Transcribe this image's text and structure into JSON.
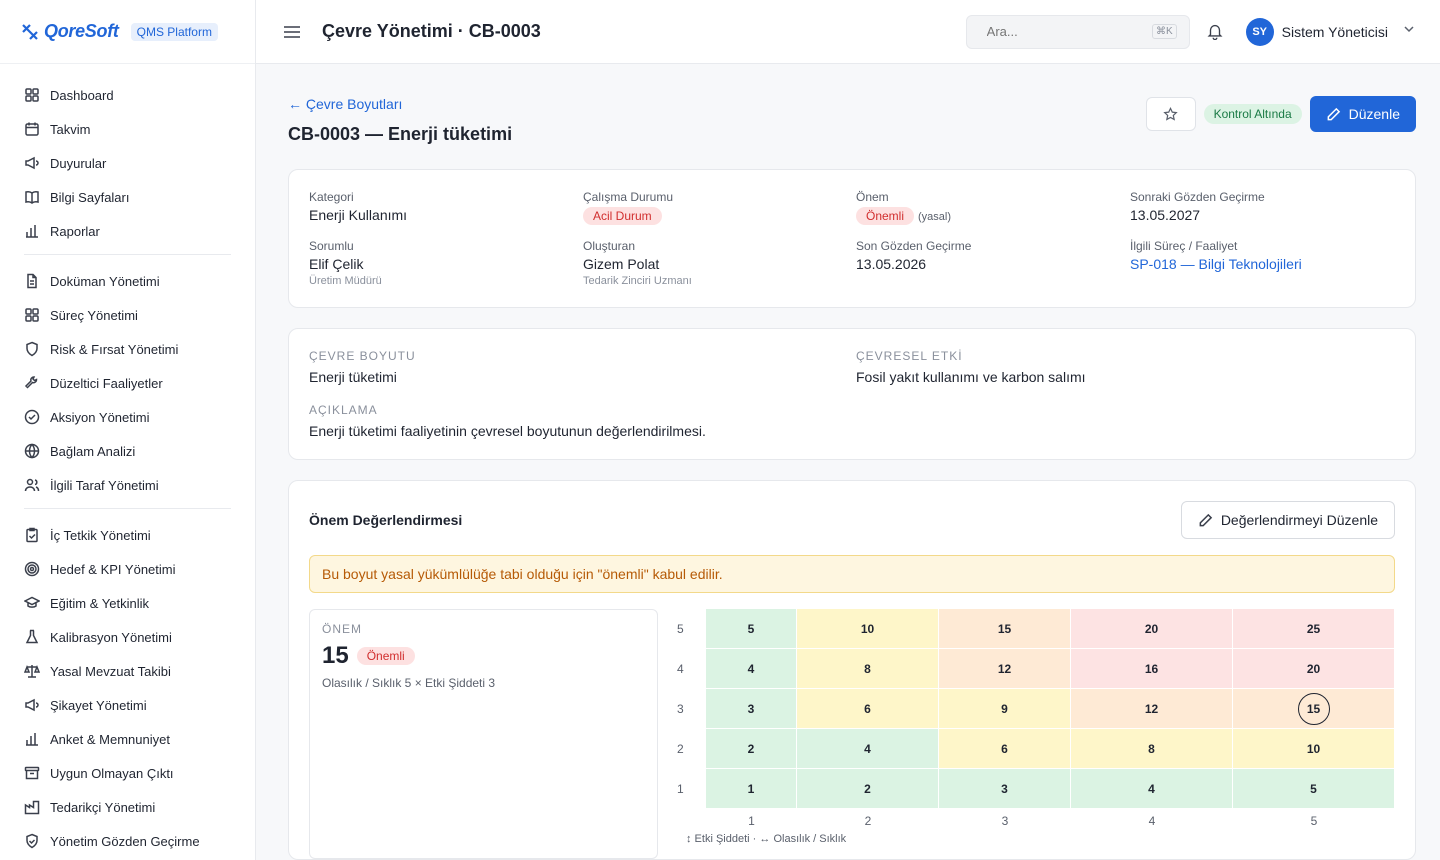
{
  "brand": {
    "logo_text": "QoreSoft",
    "platform": "QMS Platform"
  },
  "sidebar": {
    "groups": [
      [
        {
          "label": "Dashboard",
          "icon": "grid-icon"
        },
        {
          "label": "Takvim",
          "icon": "calendar-icon"
        },
        {
          "label": "Duyurular",
          "icon": "megaphone-icon"
        },
        {
          "label": "Bilgi Sayfaları",
          "icon": "book-icon"
        },
        {
          "label": "Raporlar",
          "icon": "bar-chart-icon"
        }
      ],
      [
        {
          "label": "Doküman Yönetimi",
          "icon": "document-icon"
        },
        {
          "label": "Süreç Yönetimi",
          "icon": "grid-icon"
        },
        {
          "label": "Risk & Fırsat Yönetimi",
          "icon": "shield-icon"
        },
        {
          "label": "Düzeltici Faaliyetler",
          "icon": "wrench-icon"
        },
        {
          "label": "Aksiyon Yönetimi",
          "icon": "check-circle-icon"
        },
        {
          "label": "Bağlam Analizi",
          "icon": "globe-icon"
        },
        {
          "label": "İlgili Taraf Yönetimi",
          "icon": "users-icon"
        }
      ],
      [
        {
          "label": "İç Tetkik Yönetimi",
          "icon": "clipboard-check-icon"
        },
        {
          "label": "Hedef & KPI Yönetimi",
          "icon": "target-icon"
        },
        {
          "label": "Eğitim & Yetkinlik",
          "icon": "graduation-cap-icon"
        },
        {
          "label": "Kalibrasyon Yönetimi",
          "icon": "flask-icon"
        },
        {
          "label": "Yasal Mevzuat Takibi",
          "icon": "scale-icon"
        },
        {
          "label": "Şikayet Yönetimi",
          "icon": "megaphone-icon"
        },
        {
          "label": "Anket & Memnuniyet",
          "icon": "bar-chart-icon"
        },
        {
          "label": "Uygun Olmayan Çıktı",
          "icon": "archive-icon"
        },
        {
          "label": "Tedarikçi Yönetimi",
          "icon": "factory-icon"
        },
        {
          "label": "Yönetim Gözden Geçirme",
          "icon": "shield-check-icon"
        }
      ]
    ]
  },
  "topbar": {
    "title": "Çevre Yönetimi · CB-0003",
    "search_placeholder": "Ara...",
    "search_shortcut": "⌘K",
    "user_initials": "SY",
    "user_name": "Sistem Yöneticisi"
  },
  "page": {
    "back_label": "Çevre Boyutları",
    "title": "CB-0003 — Enerji tüketimi",
    "status": "Kontrol Altında",
    "edit_label": "Düzenle"
  },
  "info": {
    "kategori_label": "Kategori",
    "kategori_value": "Enerji Kullanımı",
    "calisma_label": "Çalışma Durumu",
    "calisma_value": "Acil Durum",
    "onem_label": "Önem",
    "onem_value": "Önemli",
    "onem_note": "(yasal)",
    "sonraki_label": "Sonraki Gözden Geçirme",
    "sonraki_value": "13.05.2027",
    "sorumlu_label": "Sorumlu",
    "sorumlu_value": "Elif Çelik",
    "sorumlu_sub": "Üretim Müdürü",
    "olusturan_label": "Oluşturan",
    "olusturan_value": "Gizem Polat",
    "olusturan_sub": "Tedarik Zinciri Uzmanı",
    "son_label": "Son Gözden Geçirme",
    "son_value": "13.05.2026",
    "surec_label": "İlgili Süreç / Faaliyet",
    "surec_value": "SP-018 — Bilgi Teknolojileri"
  },
  "aspect": {
    "boyut_label": "ÇEVRE BOYUTU",
    "boyut_value": "Enerji tüketimi",
    "etki_label": "ÇEVRESEL ETKİ",
    "etki_value": "Fosil yakıt kullanımı ve karbon salımı",
    "aciklama_label": "AÇIKLAMA",
    "aciklama_value": "Enerji tüketimi faaliyetinin çevresel boyutunun değerlendirilmesi."
  },
  "evaluation": {
    "title": "Önem Değerlendirmesi",
    "edit_label": "Değerlendirmeyi Düzenle",
    "alert": "Bu boyut yasal yükümlülüğe tabi olduğu için \"önemli\" kabul edilir.",
    "score_label": "ÖNEM",
    "score_value": "15",
    "score_pill": "Önemli",
    "score_detail": "Olasılık / Sıklık 5 × Etki Şiddeti 3",
    "matrix_y": [
      "5",
      "4",
      "3",
      "2",
      "1"
    ],
    "matrix_x": [
      "1",
      "2",
      "3",
      "4",
      "5"
    ],
    "matrix_rows": [
      [
        {
          "v": "5",
          "c": "green"
        },
        {
          "v": "10",
          "c": "yellow"
        },
        {
          "v": "15",
          "c": "orange"
        },
        {
          "v": "20",
          "c": "red"
        },
        {
          "v": "25",
          "c": "red"
        }
      ],
      [
        {
          "v": "4",
          "c": "green"
        },
        {
          "v": "8",
          "c": "yellow"
        },
        {
          "v": "12",
          "c": "orange"
        },
        {
          "v": "16",
          "c": "red"
        },
        {
          "v": "20",
          "c": "red"
        }
      ],
      [
        {
          "v": "3",
          "c": "green"
        },
        {
          "v": "6",
          "c": "yellow"
        },
        {
          "v": "9",
          "c": "yellow"
        },
        {
          "v": "12",
          "c": "orange"
        },
        {
          "v": "15",
          "c": "orange",
          "active": true
        }
      ],
      [
        {
          "v": "2",
          "c": "green"
        },
        {
          "v": "4",
          "c": "green"
        },
        {
          "v": "6",
          "c": "yellow"
        },
        {
          "v": "8",
          "c": "yellow"
        },
        {
          "v": "10",
          "c": "yellow"
        }
      ],
      [
        {
          "v": "1",
          "c": "green"
        },
        {
          "v": "2",
          "c": "green"
        },
        {
          "v": "3",
          "c": "green"
        },
        {
          "v": "4",
          "c": "green"
        },
        {
          "v": "5",
          "c": "green"
        }
      ]
    ],
    "legend_y": "↕ Etki Şiddeti",
    "legend_sep": "·",
    "legend_x": "↔ Olasılık / Sıklık"
  }
}
